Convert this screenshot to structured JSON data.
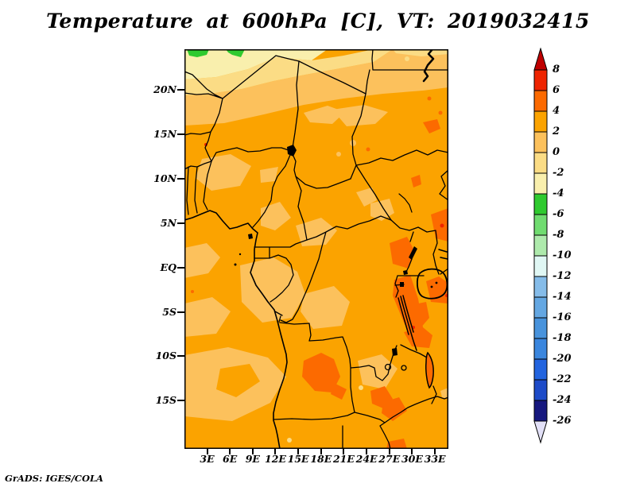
{
  "title": "Temperature at 600hPa [C], VT: 2019032415",
  "attribution": "GrADS: IGES/COLA",
  "chart_data": {
    "type": "heatmap",
    "title": "Temperature at 600hPa [C], VT: 2019032415",
    "variable": "Temperature",
    "pressure_level": "600hPa",
    "units": "C",
    "valid_time": "2019032415",
    "region": "Africa, approx 0E-35E and 20.5S-24.5N",
    "x_ticks": [
      "3E",
      "6E",
      "9E",
      "12E",
      "15E",
      "18E",
      "21E",
      "24E",
      "27E",
      "30E",
      "33E"
    ],
    "y_ticks": [
      "20N",
      "15N",
      "10N",
      "5N",
      "EQ",
      "5S",
      "10S",
      "15S"
    ],
    "colorbar": {
      "position": "right",
      "boundary_labels": [
        "8",
        "6",
        "4",
        "2",
        "0",
        "-2",
        "-4",
        "-6",
        "-8",
        "-10",
        "-12",
        "-14",
        "-16",
        "-18",
        "-20",
        "-22",
        "-24",
        "-26"
      ],
      "box_colors_top_to_bottom": [
        "#ee2400",
        "#fc6a00",
        "#fba300",
        "#fcc15c",
        "#fbdc85",
        "#f9efad",
        "#2fca2f",
        "#70dc70",
        "#aeeaac",
        "#e0f7f4",
        "#85bce9",
        "#64a7e2",
        "#4893dc",
        "#3a86de",
        "#2264df",
        "#1d4bc8",
        "#16187f"
      ],
      "above_max_color": "#bf0000",
      "below_min_color": "#e2e0f7"
    },
    "palette": {
      "above_8": "#bf0000",
      "6_to_8": "#ee2400",
      "4_to_6": "#fc6a00",
      "2_to_4": "#fba300",
      "0_to_2": "#fcc15c",
      "m2_to_0": "#fbdc85",
      "m4_to_m2": "#f9efad",
      "m6_to_m4": "#2fca2f",
      "m8_to_m6": "#70dc70",
      "m10_to_m8": "#aeeaac",
      "m12_to_m10": "#e0f7f4",
      "m14_to_m12": "#85bce9",
      "m16_to_m14": "#64a7e2",
      "m18_to_m16": "#4893dc",
      "m20_to_m18": "#3a86de",
      "m22_to_m20": "#2264df",
      "m24_to_m22": "#1d4bc8",
      "m26_to_m24": "#16187f",
      "below_m26": "#e2e0f7"
    },
    "field_notes": [
      "Most of the domain is in the 2-4 C range (orange) with large mottled 0-2 C areas (light amber) over the west, the Gulf of Guinea and the southwest",
      "A cooler band of -4 to 0 C (pale yellows) crosses the Sahara near 20-24N, with small below -4 C spots (green) at the far northwest corner",
      "Warmer 4-6 C patches (red-orange) over the East African lakes (Victoria, Tanganyika, Malawi), central Angola, southeastern Sudan and near 27E at the southern edge",
      "A few tiny spots exceed 6 C near the great lakes and over Niger"
    ]
  }
}
